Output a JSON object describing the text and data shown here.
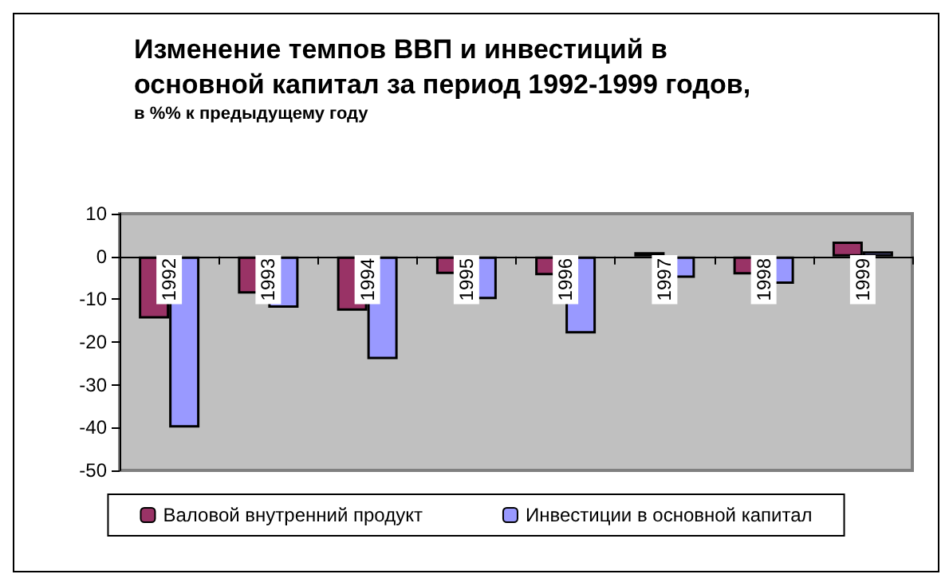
{
  "chart_data": {
    "type": "bar",
    "title": "Изменение темпов ВВП и инвестиций в\nосновной капитал за период 1992-1999 годов,",
    "subtitle": "в %% к предыдущему году",
    "categories": [
      "1992",
      "1993",
      "1994",
      "1995",
      "1996",
      "1997",
      "1998",
      "1999"
    ],
    "series": [
      {
        "name": "Валовой внутренний продукт",
        "color": "#993366",
        "values": [
          -14.5,
          -8.7,
          -12.7,
          -4.1,
          -4.4,
          1,
          -4.2,
          3.5
        ]
      },
      {
        "name": "Инвестиции в основной капитал",
        "color": "#9999ff",
        "values": [
          -40,
          -12,
          -24,
          -10,
          -18,
          -5,
          -6.4,
          1.2
        ]
      }
    ],
    "ylim": [
      -50,
      10
    ],
    "yticks": [
      -50,
      -40,
      -30,
      -20,
      -10,
      0,
      10
    ],
    "grid": false,
    "legend": "bottom"
  }
}
